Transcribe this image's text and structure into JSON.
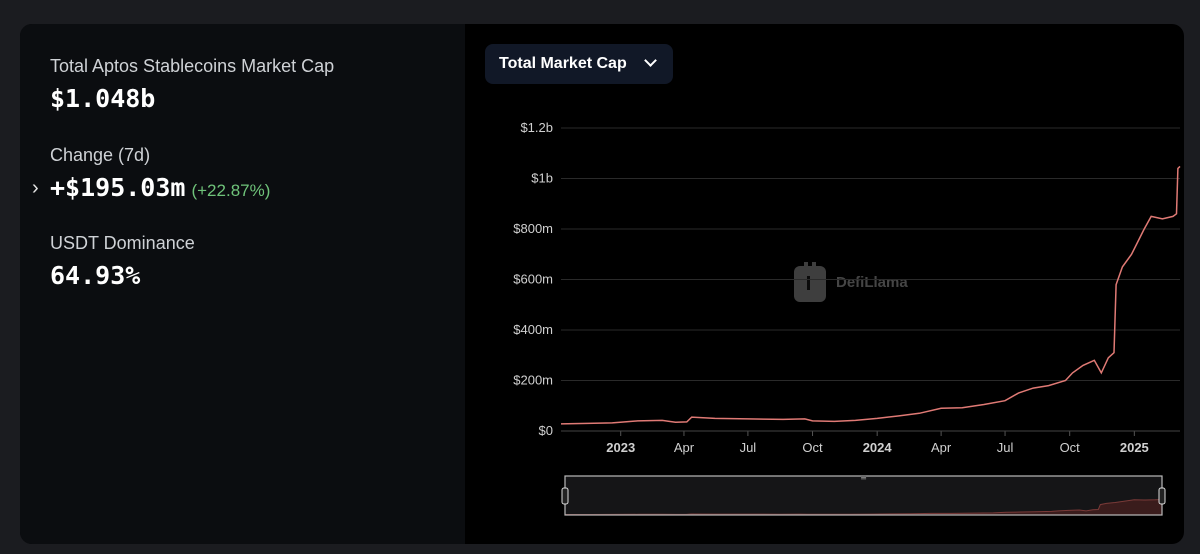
{
  "stats": {
    "total_label": "Total Aptos Stablecoins Market Cap",
    "total_value": "$1.048b",
    "change_label": "Change (7d)",
    "change_value": "+$195.03m",
    "change_pct": "(+22.87%)",
    "dominance_label": "USDT Dominance",
    "dominance_value": "64.93%"
  },
  "selector": {
    "label": "Total Market Cap"
  },
  "watermark": "DefiLlama",
  "colors": {
    "line": "#e07a75",
    "positive": "#6fc37a",
    "background": "#000000",
    "panel": "#0b0d10"
  },
  "chart_data": {
    "type": "line",
    "ylim": [
      0,
      1.2
    ],
    "y_unit": "billions USD",
    "y_ticks": [
      {
        "v": 0,
        "label": "$0"
      },
      {
        "v": 0.2,
        "label": "$200m"
      },
      {
        "v": 0.4,
        "label": "$400m"
      },
      {
        "v": 0.6,
        "label": "$600m"
      },
      {
        "v": 0.8,
        "label": "$800m"
      },
      {
        "v": 1.0,
        "label": "$1b"
      },
      {
        "v": 1.2,
        "label": "$1.2b"
      }
    ],
    "x_range": [
      "2022-10-08",
      "2025-03-07"
    ],
    "x_ticks": [
      {
        "date": "2023-01-01",
        "label": "2023",
        "bold": true
      },
      {
        "date": "2023-04-01",
        "label": "Apr",
        "bold": false
      },
      {
        "date": "2023-07-01",
        "label": "Jul",
        "bold": false
      },
      {
        "date": "2023-10-01",
        "label": "Oct",
        "bold": false
      },
      {
        "date": "2024-01-01",
        "label": "2024",
        "bold": true
      },
      {
        "date": "2024-04-01",
        "label": "Apr",
        "bold": false
      },
      {
        "date": "2024-07-01",
        "label": "Jul",
        "bold": false
      },
      {
        "date": "2024-10-01",
        "label": "Oct",
        "bold": false
      },
      {
        "date": "2025-01-01",
        "label": "2025",
        "bold": true
      }
    ],
    "series": [
      {
        "values": [
          [
            "2022-10-08",
            0.028
          ],
          [
            "2022-11-15",
            0.03
          ],
          [
            "2022-12-20",
            0.032
          ],
          [
            "2023-01-25",
            0.04
          ],
          [
            "2023-03-01",
            0.042
          ],
          [
            "2023-03-20",
            0.035
          ],
          [
            "2023-04-05",
            0.036
          ],
          [
            "2023-04-12",
            0.055
          ],
          [
            "2023-05-15",
            0.05
          ],
          [
            "2023-07-01",
            0.048
          ],
          [
            "2023-08-20",
            0.046
          ],
          [
            "2023-09-20",
            0.048
          ],
          [
            "2023-10-01",
            0.04
          ],
          [
            "2023-11-01",
            0.038
          ],
          [
            "2023-12-01",
            0.042
          ],
          [
            "2024-01-01",
            0.05
          ],
          [
            "2024-02-01",
            0.06
          ],
          [
            "2024-03-01",
            0.07
          ],
          [
            "2024-04-01",
            0.09
          ],
          [
            "2024-05-01",
            0.092
          ],
          [
            "2024-06-01",
            0.105
          ],
          [
            "2024-07-01",
            0.12
          ],
          [
            "2024-07-20",
            0.15
          ],
          [
            "2024-08-10",
            0.17
          ],
          [
            "2024-09-01",
            0.18
          ],
          [
            "2024-09-25",
            0.2
          ],
          [
            "2024-10-05",
            0.23
          ],
          [
            "2024-10-20",
            0.26
          ],
          [
            "2024-11-05",
            0.28
          ],
          [
            "2024-11-15",
            0.23
          ],
          [
            "2024-11-25",
            0.29
          ],
          [
            "2024-12-03",
            0.31
          ],
          [
            "2024-12-06",
            0.58
          ],
          [
            "2024-12-15",
            0.65
          ],
          [
            "2024-12-28",
            0.7
          ],
          [
            "2025-01-15",
            0.8
          ],
          [
            "2025-01-25",
            0.85
          ],
          [
            "2025-02-10",
            0.84
          ],
          [
            "2025-02-25",
            0.85
          ],
          [
            "2025-03-02",
            0.86
          ],
          [
            "2025-03-04",
            1.04
          ],
          [
            "2025-03-07",
            1.048
          ]
        ]
      }
    ]
  }
}
